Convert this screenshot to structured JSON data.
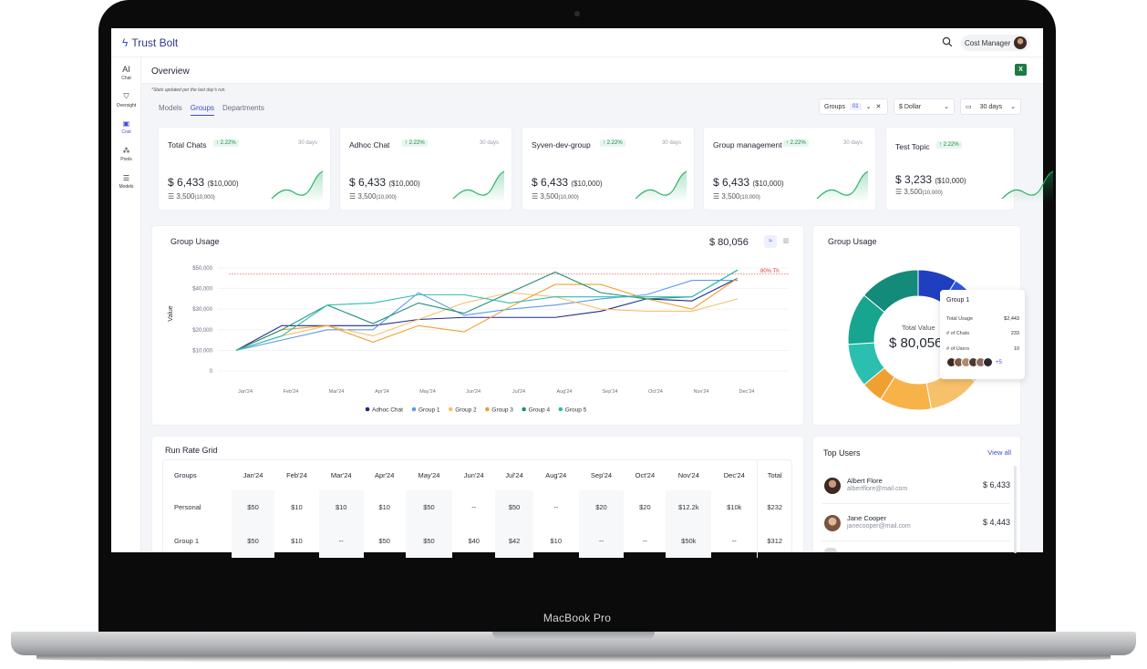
{
  "device": {
    "label": "MacBook Pro"
  },
  "app": {
    "brand": "Trust Bolt",
    "user_role": "Cost Manager"
  },
  "sidebar": {
    "items": [
      {
        "label": "Chat",
        "icon": "AI"
      },
      {
        "label": "Oversight",
        "icon": "shield-icon"
      },
      {
        "label": "Cost",
        "icon": "receipt-icon"
      },
      {
        "label": "Pools",
        "icon": "nodes-icon"
      },
      {
        "label": "Models",
        "icon": "list-icon"
      }
    ]
  },
  "header": {
    "title": "Overview",
    "note_star": "*",
    "note": "Stats updated per the last day's run."
  },
  "tabs": [
    "Models",
    "Groups",
    "Departments"
  ],
  "filters": {
    "groups_label": "Groups",
    "groups_count": "01",
    "currency": "$ Dollar",
    "period": "30 days"
  },
  "kpis": [
    {
      "name": "Total Chats",
      "delta": "2.22%",
      "period": "30 days",
      "value": "$ 6,433",
      "budget": "($10,000)",
      "chats": "3,500",
      "chats_total": "(10,000)"
    },
    {
      "name": "Adhoc Chat",
      "delta": "2.22%",
      "period": "30 days",
      "value": "$ 6,433",
      "budget": "($10,000)",
      "chats": "3,500",
      "chats_total": "(10,000)"
    },
    {
      "name": "Syven-dev-group",
      "delta": "2.22%",
      "period": "30 days",
      "value": "$ 6,433",
      "budget": "($10,000)",
      "chats": "3,500",
      "chats_total": "(10,000)"
    },
    {
      "name": "Group management",
      "delta": "2.22%",
      "period": "30 days",
      "value": "$ 6,433",
      "budget": "($10,000)",
      "chats": "3,500",
      "chats_total": "(10,000)"
    },
    {
      "name": "Test Topic",
      "delta": "2.22%",
      "period": "",
      "value": "$ 3,233",
      "budget": "($10,000)",
      "chats": "3,500",
      "chats_total": "(10,000)"
    }
  ],
  "group_usage_chart": {
    "title": "Group Usage",
    "total": "$ 80,056",
    "threshold_label": "80% Th",
    "chart_data": {
      "type": "line",
      "title": "Group Usage",
      "ylabel": "Value",
      "xlabel": "",
      "ylim": [
        0,
        50000
      ],
      "yticks": [
        "$50,000",
        "$40,000",
        "$30,000",
        "$20,000",
        "$10,000",
        "0"
      ],
      "categories": [
        "Jan'24",
        "Feb'24",
        "Mar'24",
        "Apr'24",
        "May'24",
        "Jun'24",
        "Jul'24",
        "Aug'24",
        "Sep'24",
        "Oct'24",
        "Nov'24",
        "Dec'24"
      ],
      "threshold": 47000,
      "series": [
        {
          "name": "Adhoc Chat",
          "color": "#1f2b8f",
          "values": [
            10000,
            22000,
            22000,
            22000,
            25000,
            26000,
            26000,
            26000,
            29000,
            35000,
            34000,
            45000
          ]
        },
        {
          "name": "Group 1",
          "color": "#5a9be8",
          "values": [
            10000,
            15000,
            20000,
            20000,
            38000,
            27000,
            30000,
            32000,
            35000,
            37000,
            44000,
            44000
          ]
        },
        {
          "name": "Group 2",
          "color": "#f7c06b",
          "values": [
            10000,
            17000,
            22000,
            17000,
            25000,
            33000,
            38000,
            36000,
            30000,
            29000,
            29000,
            35000
          ]
        },
        {
          "name": "Group 3",
          "color": "#f0a030",
          "values": [
            10000,
            20000,
            22000,
            14000,
            22000,
            19000,
            31000,
            42000,
            42000,
            35000,
            30000,
            45000
          ]
        },
        {
          "name": "Group 4",
          "color": "#1f8f74",
          "values": [
            10000,
            20000,
            32000,
            23000,
            33000,
            28000,
            38000,
            48000,
            38000,
            35000,
            36000,
            49000
          ]
        },
        {
          "name": "Group 5",
          "color": "#2bbfb0",
          "values": [
            10000,
            17000,
            32000,
            33000,
            37000,
            37000,
            33000,
            36000,
            36000,
            36000,
            36000,
            49000
          ]
        }
      ]
    }
  },
  "group_usage_donut": {
    "title": "Group Usage",
    "center_label": "Total Value",
    "center_value": "$ 80,056",
    "chart_data": {
      "type": "pie",
      "title": "Group Usage",
      "slices": [
        {
          "value": 9,
          "color": "#1f3fc0"
        },
        {
          "value": 7,
          "color": "#2f58e0"
        },
        {
          "value": 4,
          "color": "#4a78ea"
        },
        {
          "value": 6,
          "color": "#5a90f0"
        },
        {
          "value": 5,
          "color": "#7fa8f3"
        },
        {
          "value": 4,
          "color": "#a8c4f7"
        },
        {
          "value": 12,
          "color": "#f7c06b"
        },
        {
          "value": 12,
          "color": "#f7b24a"
        },
        {
          "value": 5,
          "color": "#f0a030"
        },
        {
          "value": 10,
          "color": "#2bbfb0"
        },
        {
          "value": 12,
          "color": "#18a58f"
        },
        {
          "value": 14,
          "color": "#148a7a"
        }
      ]
    },
    "tooltip": {
      "title": "Group 1",
      "rows": [
        {
          "label": "Total Usage",
          "value": "$2,443"
        },
        {
          "label": "# of Chats",
          "value": "233"
        },
        {
          "label": "# of Users",
          "value": "10"
        }
      ],
      "more": "+5"
    }
  },
  "run_rate": {
    "title": "Run Rate Grid",
    "headers": [
      "Groups",
      "Jan'24",
      "Feb'24",
      "Mar'24",
      "Apr'24",
      "May'24",
      "Jun'24",
      "Jul'24",
      "Aug'24",
      "Sep'24",
      "Oct'24",
      "Nov'24",
      "Dec'24",
      "Total"
    ],
    "rows": [
      [
        "Personal",
        "$50",
        "$10",
        "$10",
        "$10",
        "$50",
        "--",
        "$50",
        "--",
        "$20",
        "$20",
        "$12.2k",
        "$10k",
        "$232"
      ],
      [
        "Group 1",
        "$50",
        "$10",
        "--",
        "$50",
        "$50",
        "$40",
        "$42",
        "$10",
        "--",
        "--",
        "$50k",
        "--",
        "$312"
      ]
    ]
  },
  "top_users": {
    "title": "Top Users",
    "view_all": "View all",
    "users": [
      {
        "name": "Albert Flore",
        "email": "albertflore@mail.com",
        "amount": "$ 6,433"
      },
      {
        "name": "Jane Cooper",
        "email": "janecooper@mail.com",
        "amount": "$ 4,443"
      }
    ]
  }
}
